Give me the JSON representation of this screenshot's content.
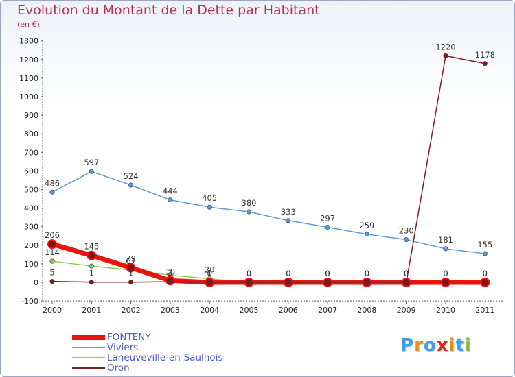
{
  "title": "Evolution du Montant de la Dette par Habitant",
  "subtitle": "(en €)",
  "brand": {
    "text": "Proxiti",
    "letter_colors": [
      "#3a9ee8",
      "#e98a1c",
      "#3a9ee8",
      "#e0241b",
      "#e98a1c",
      "#3a9ee8",
      "#7cc242"
    ]
  },
  "chart_data": {
    "type": "line",
    "title": "Evolution du Montant de la Dette par Habitant",
    "ylabel": "(en €)",
    "xlabel": "",
    "x": [
      "2000",
      "2001",
      "2002",
      "2003",
      "2004",
      "2005",
      "2006",
      "2007",
      "2008",
      "2009",
      "2010",
      "2011"
    ],
    "ylim": [
      -100,
      1300
    ],
    "yticks": [
      -100,
      0,
      100,
      200,
      300,
      400,
      500,
      600,
      700,
      800,
      900,
      1000,
      1100,
      1200,
      1300
    ],
    "grid": false,
    "legend_position": "bottom-left",
    "series": [
      {
        "name": "FONTENY",
        "color": "#e8140e",
        "values": [
          206,
          145,
          79,
          10,
          0,
          0,
          0,
          0,
          0,
          0,
          0,
          0
        ],
        "labels": [
          "206",
          "145",
          "79",
          "10",
          "0",
          "0",
          "0",
          "0",
          "0",
          "0",
          "0",
          "0"
        ]
      },
      {
        "name": "Viviers",
        "color": "#5b9bd5",
        "values": [
          486,
          597,
          524,
          444,
          405,
          380,
          333,
          297,
          259,
          230,
          181,
          155
        ],
        "labels": [
          "486",
          "597",
          "524",
          "444",
          "405",
          "380",
          "333",
          "297",
          "259",
          "230",
          "181",
          "155"
        ]
      },
      {
        "name": "Laneuveville-en-Saulnois",
        "color": "#8ccf4d",
        "values": [
          114,
          88,
          67,
          39,
          20,
          0,
          0,
          0,
          0,
          0,
          0,
          0
        ],
        "labels": [
          "114",
          "",
          "67",
          "",
          "20",
          "0",
          "0",
          "0",
          "0",
          "0",
          "0",
          "0"
        ]
      },
      {
        "name": "Oron",
        "color": "#7a1f1f",
        "values": [
          5,
          1,
          1,
          3,
          1,
          0,
          0,
          0,
          0,
          0,
          1220,
          1178
        ],
        "labels": [
          "5",
          "1",
          "1",
          "3",
          "1",
          "0",
          "0",
          "0",
          "0",
          "0",
          "1220",
          "1178"
        ]
      }
    ]
  }
}
